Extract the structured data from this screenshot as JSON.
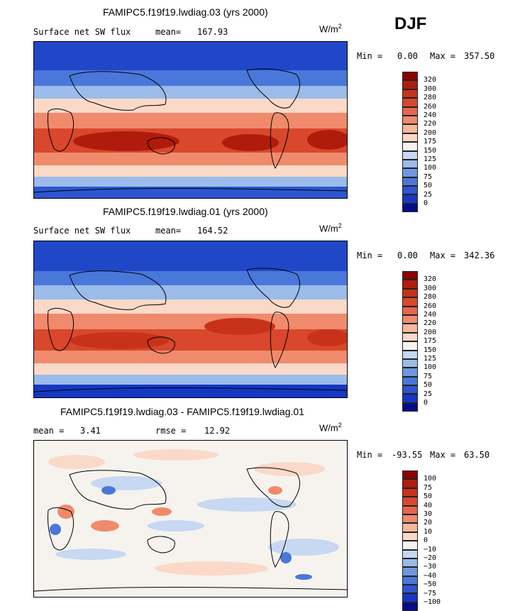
{
  "season": "DJF",
  "units_base": "W/m",
  "units_exp": "2",
  "panels": [
    {
      "title": "FAMIPC5.f19f19.lwdiag.03 (yrs 2000)",
      "variable": "Surface net SW flux",
      "stat_label": "mean=",
      "stat_value": "167.93",
      "min_label": "Min =",
      "min_value": "0.00",
      "max_label": "Max =",
      "max_value": "357.50",
      "levels": [
        "320",
        "300",
        "280",
        "260",
        "240",
        "220",
        "200",
        "175",
        "150",
        "125",
        "100",
        "75",
        "50",
        "25",
        "0"
      ]
    },
    {
      "title": "FAMIPC5.f19f19.lwdiag.01 (yrs 2000)",
      "variable": "Surface net SW flux",
      "stat_label": "mean=",
      "stat_value": "164.52",
      "min_label": "Min =",
      "min_value": "0.00",
      "max_label": "Max =",
      "max_value": "342.36",
      "levels": [
        "320",
        "300",
        "280",
        "260",
        "240",
        "220",
        "200",
        "175",
        "150",
        "125",
        "100",
        "75",
        "50",
        "25",
        "0"
      ]
    },
    {
      "title": "FAMIPC5.f19f19.lwdiag.03 - FAMIPC5.f19f19.lwdiag.01",
      "variable": "mean =",
      "stat_label": "",
      "stat_value": "3.41",
      "rmse_label": "rmse =",
      "rmse_value": "12.92",
      "min_label": "Min =",
      "min_value": "-93.55",
      "max_label": "Max =",
      "max_value": "63.50",
      "levels": [
        "100",
        "75",
        "50",
        "40",
        "30",
        "20",
        "10",
        "0",
        "−10",
        "−20",
        "−30",
        "−40",
        "−50",
        "−75",
        "−100"
      ]
    }
  ],
  "colors": {
    "abs_scale": [
      "#8b0000",
      "#b01c0c",
      "#c8321a",
      "#d9482c",
      "#e7664a",
      "#f08a6c",
      "#f7b79c",
      "#fbd9c8",
      "#f6f3ef",
      "#c6d8f2",
      "#9bbcea",
      "#6f98e0",
      "#4a77da",
      "#2c55cf",
      "#1537c2",
      "#050c8c"
    ],
    "diff_scale": [
      "#8b0000",
      "#b01c0c",
      "#c8321a",
      "#d9482c",
      "#e7664a",
      "#f08a6c",
      "#f7b79c",
      "#fbd9c8",
      "#f6f3ef",
      "#c6d8f2",
      "#9bbcea",
      "#6f98e0",
      "#4a77da",
      "#2c55cf",
      "#1537c2",
      "#050c8c"
    ]
  }
}
